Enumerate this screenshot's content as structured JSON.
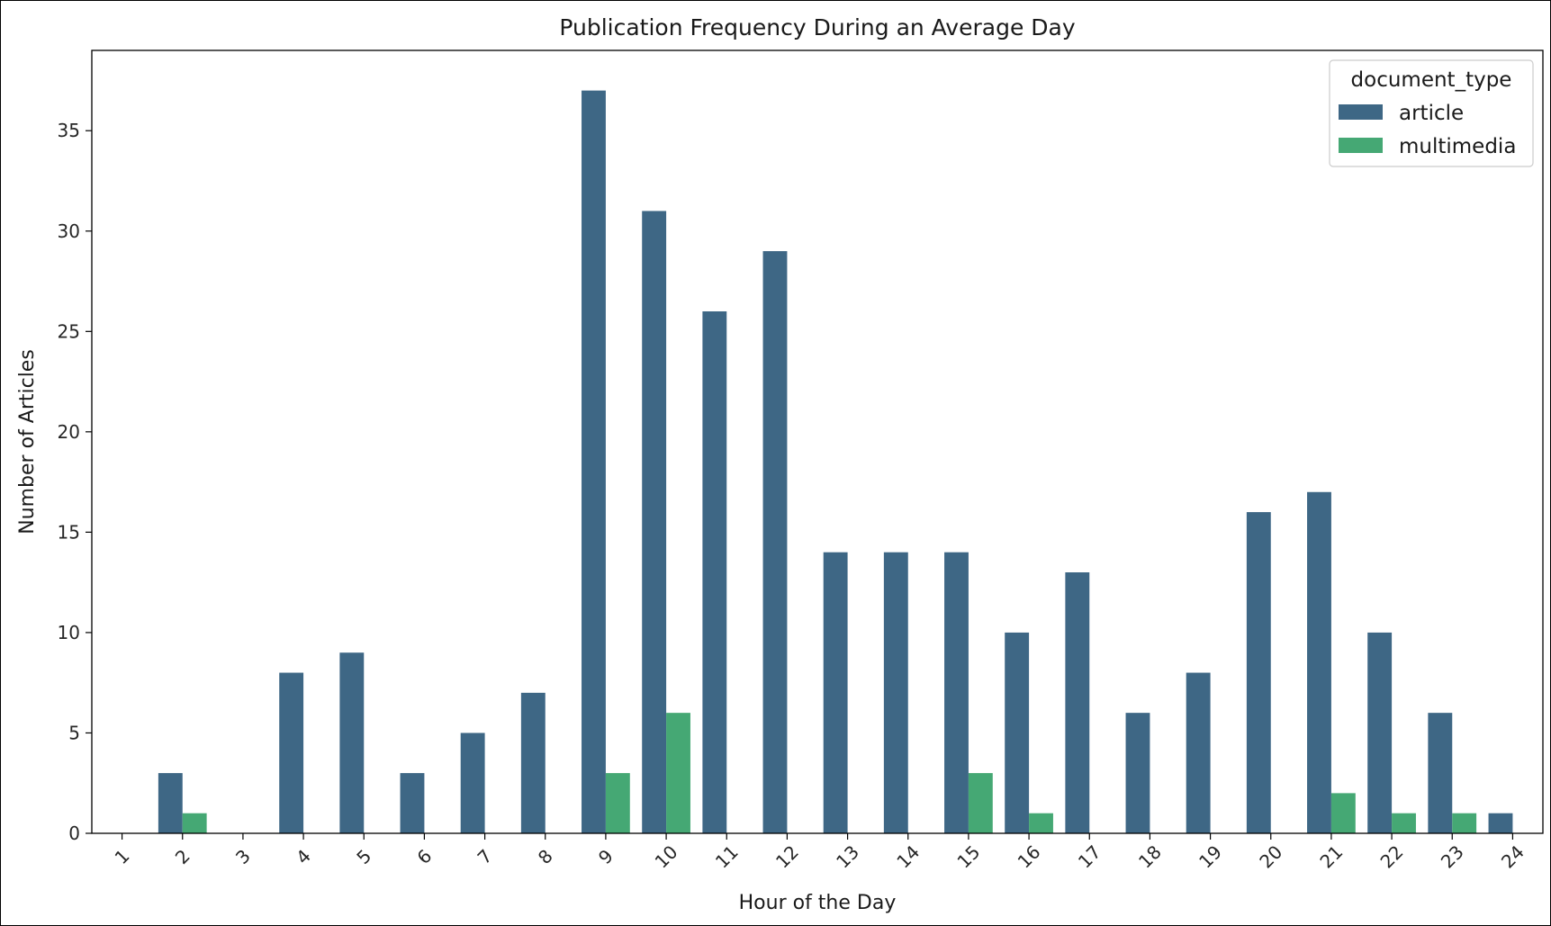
{
  "chart_data": {
    "type": "bar",
    "title": "Publication Frequency During an Average Day",
    "xlabel": "Hour of the Day",
    "ylabel": "Number of Articles",
    "categories": [
      "1",
      "2",
      "3",
      "4",
      "5",
      "6",
      "7",
      "8",
      "9",
      "10",
      "11",
      "12",
      "13",
      "14",
      "15",
      "16",
      "17",
      "18",
      "19",
      "20",
      "21",
      "22",
      "23",
      "24"
    ],
    "series": [
      {
        "name": "article",
        "color": "#3e6785",
        "values": [
          0,
          3,
          0,
          8,
          9,
          3,
          5,
          7,
          37,
          31,
          26,
          29,
          14,
          14,
          14,
          10,
          13,
          6,
          8,
          16,
          17,
          10,
          6,
          1
        ]
      },
      {
        "name": "multimedia",
        "color": "#45a874",
        "values": [
          0,
          1,
          0,
          0,
          0,
          0,
          0,
          0,
          3,
          6,
          0,
          0,
          0,
          0,
          3,
          1,
          0,
          0,
          0,
          0,
          2,
          1,
          1,
          0
        ]
      }
    ],
    "ylim": [
      0,
      39
    ],
    "yticks": [
      0,
      5,
      10,
      15,
      20,
      25,
      30,
      35
    ],
    "xtick_rotation_deg": 45,
    "grid": false,
    "legend": {
      "title": "document_type",
      "placement": "top-right"
    }
  }
}
